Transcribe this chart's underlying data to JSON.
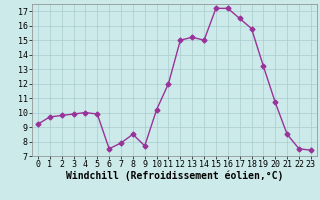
{
  "x": [
    0,
    1,
    2,
    3,
    4,
    5,
    6,
    7,
    8,
    9,
    10,
    11,
    12,
    13,
    14,
    15,
    16,
    17,
    18,
    19,
    20,
    21,
    22,
    23
  ],
  "y": [
    9.2,
    9.7,
    9.8,
    9.9,
    10.0,
    9.9,
    7.5,
    7.9,
    8.5,
    7.7,
    10.2,
    12.0,
    15.0,
    15.2,
    15.0,
    17.2,
    17.2,
    16.5,
    15.8,
    13.2,
    10.7,
    8.5,
    7.5,
    7.4
  ],
  "line_color": "#993399",
  "marker": "D",
  "marker_size": 2.5,
  "linewidth": 1.0,
  "xlabel": "Windchill (Refroidissement éolien,°C)",
  "ylim": [
    7,
    17.5
  ],
  "ytick_min": 7,
  "ytick_max": 17,
  "xticks": [
    0,
    1,
    2,
    3,
    4,
    5,
    6,
    7,
    8,
    9,
    10,
    11,
    12,
    13,
    14,
    15,
    16,
    17,
    18,
    19,
    20,
    21,
    22,
    23
  ],
  "bg_color": "#cceaea",
  "grid_color": "#aacccc",
  "tick_fontsize": 6.0,
  "xlabel_fontsize": 7.0
}
